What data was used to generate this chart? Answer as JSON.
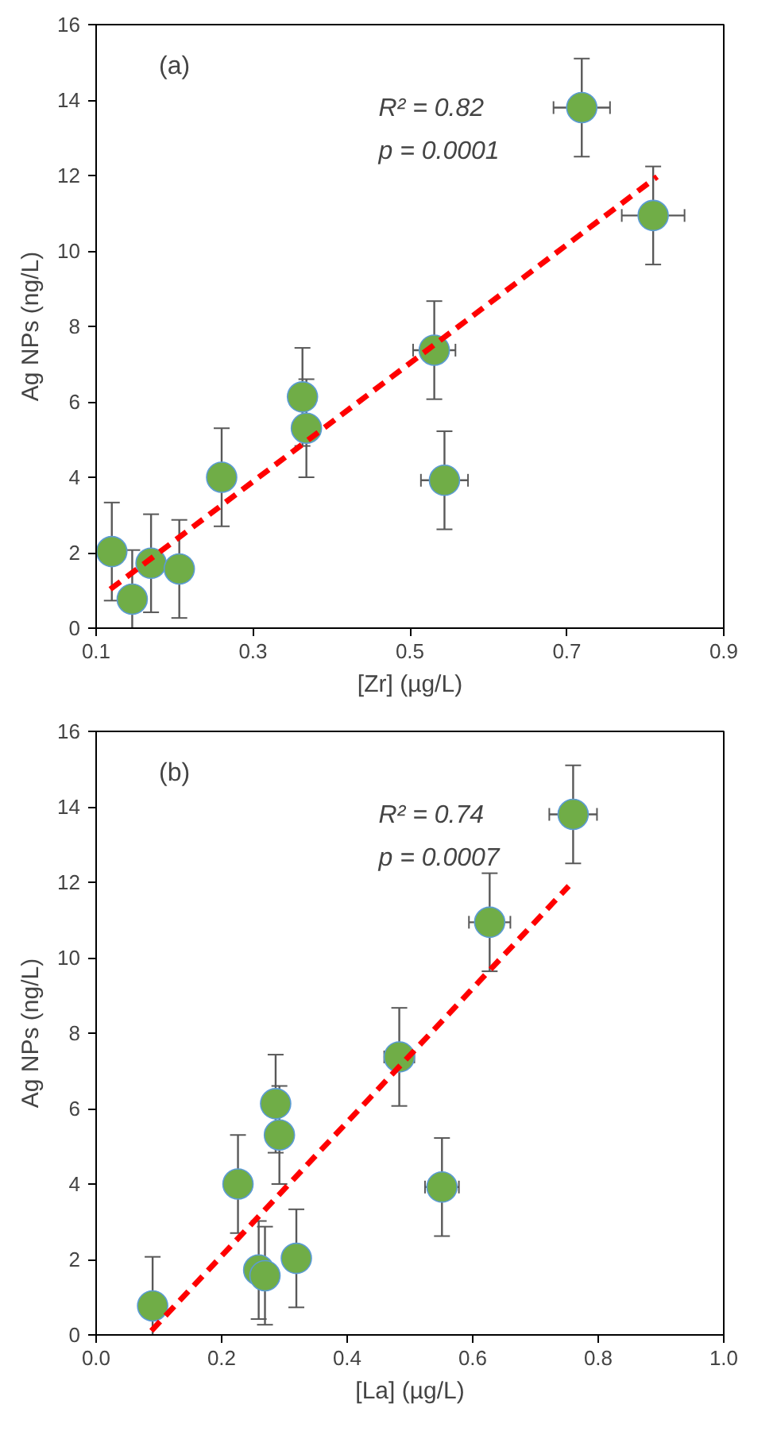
{
  "chart_data": [
    {
      "type": "scatter",
      "xlabel": "[Zr] (µg/L)",
      "ylabel": "Ag NPs (ng/L)",
      "annotations": [
        "(a)",
        "R² = 0.82",
        "p = 0.0001"
      ],
      "xlim": [
        0.1,
        0.9
      ],
      "xticks": [
        0.1,
        0.3,
        0.5,
        0.7,
        0.9
      ],
      "ylim": [
        0,
        16
      ],
      "yticks": [
        0,
        2,
        4,
        6,
        8,
        10,
        12,
        14,
        16
      ],
      "grid": false,
      "series": [
        {
          "marker": "circle",
          "color": "#70ad47",
          "x": [
            0.12,
            0.146,
            0.17,
            0.206,
            0.26,
            0.363,
            0.368,
            0.531,
            0.544,
            0.719,
            0.81
          ],
          "values": [
            2.03,
            0.77,
            1.72,
            1.57,
            4.0,
            6.13,
            5.3,
            7.37,
            3.92,
            13.8,
            10.94
          ],
          "errors": [
            1.3,
            1.3,
            1.3,
            1.3,
            1.3,
            1.3,
            1.3,
            1.3,
            1.3,
            1.3,
            1.3
          ],
          "xerrors": [
            null,
            null,
            null,
            null,
            null,
            null,
            null,
            0.027,
            0.03,
            0.036,
            0.04
          ]
        },
        {
          "type": "line",
          "color": "#ff0000",
          "line_style": "dashed",
          "x": [
            0.118,
            0.815
          ],
          "values": [
            1.03,
            11.97
          ]
        }
      ]
    },
    {
      "type": "scatter",
      "xlabel": "[La] (µg/L)",
      "ylabel": "Ag NPs (ng/L)",
      "annotations": [
        "(b)",
        "R² = 0.74",
        "p = 0.0007"
      ],
      "xlim": [
        0,
        1.0
      ],
      "xticks": [
        {
          "value": 0,
          "label": "0.0"
        },
        0.2,
        0.4,
        0.6,
        0.8,
        {
          "value": 1.0,
          "label": "1.0"
        }
      ],
      "ylim": [
        0,
        16
      ],
      "yticks": [
        0,
        2,
        4,
        6,
        8,
        10,
        12,
        14,
        16
      ],
      "grid": false,
      "series": [
        {
          "marker": "circle",
          "color": "#70ad47",
          "x": [
            0.09,
            0.226,
            0.259,
            0.269,
            0.286,
            0.292,
            0.319,
            0.483,
            0.551,
            0.627,
            0.76
          ],
          "values": [
            0.77,
            4.0,
            1.72,
            1.57,
            6.13,
            5.3,
            2.03,
            7.37,
            3.92,
            10.94,
            13.8
          ],
          "errors": [
            1.3,
            1.3,
            1.3,
            1.3,
            1.3,
            1.3,
            1.3,
            1.3,
            1.3,
            1.3,
            1.3
          ],
          "xerrors": [
            null,
            null,
            null,
            null,
            null,
            null,
            null,
            0.024,
            0.027,
            0.033,
            0.038
          ]
        },
        {
          "type": "line",
          "color": "#ff0000",
          "line_style": "dashed",
          "x": [
            0.088,
            0.753
          ],
          "values": [
            0.11,
            11.9
          ]
        }
      ]
    }
  ]
}
